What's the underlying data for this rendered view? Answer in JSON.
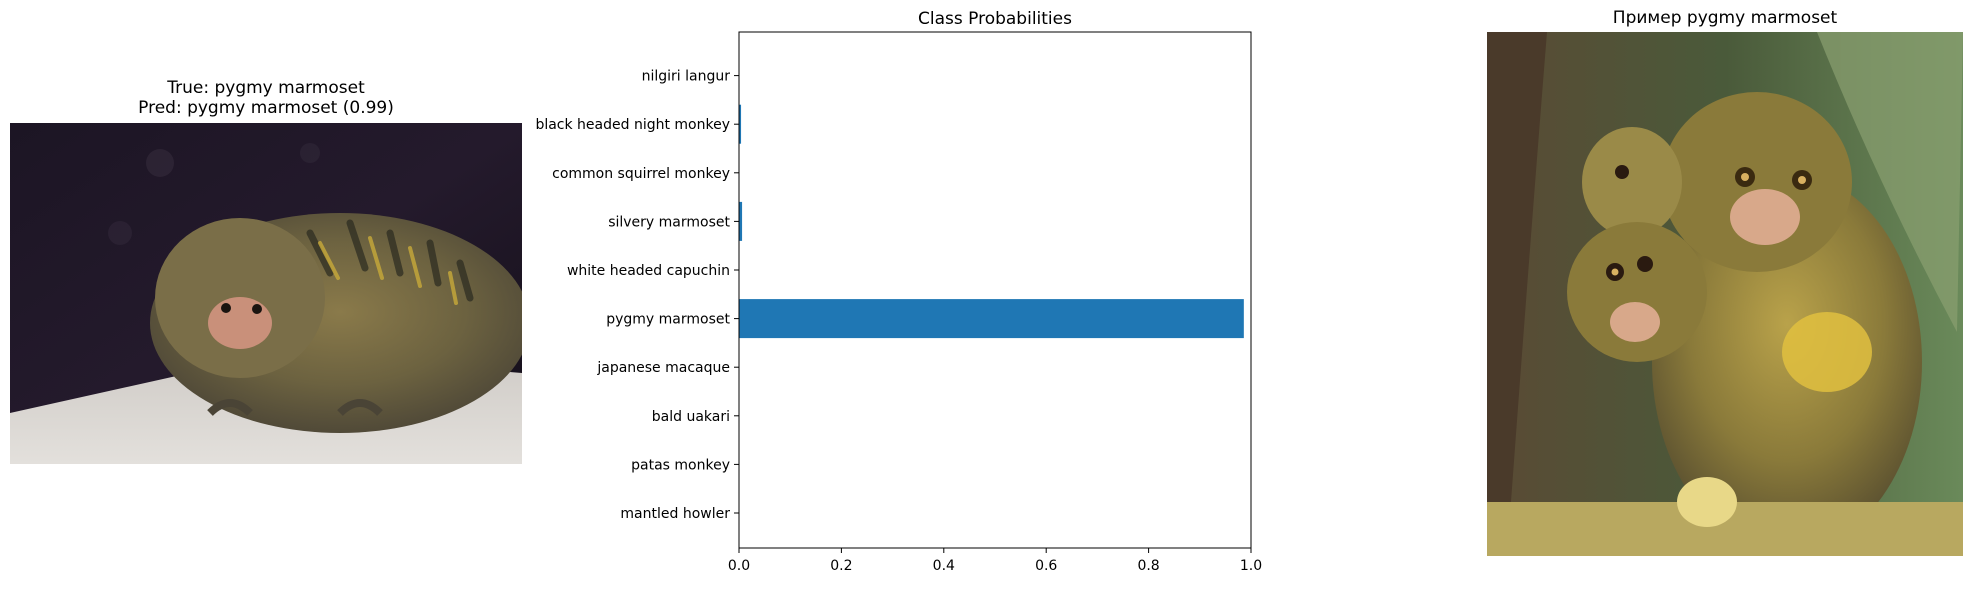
{
  "left_panel": {
    "title_line1": "True: pygmy marmoset",
    "title_line2": "Pred: pygmy marmoset (0.99)"
  },
  "right_panel": {
    "title": "Пример pygmy marmoset"
  },
  "chart_data": {
    "type": "bar",
    "orientation": "horizontal",
    "title": "Class Probabilities",
    "xlabel": "",
    "ylabel": "",
    "categories": [
      "mantled howler",
      "patas monkey",
      "bald uakari",
      "japanese macaque",
      "pygmy marmoset",
      "white headed capuchin",
      "silvery marmoset",
      "common squirrel monkey",
      "black headed night monkey",
      "nilgiri langur"
    ],
    "values": [
      0.0005,
      0.0004,
      0.0004,
      0.0005,
      0.986,
      0.0004,
      0.006,
      0.0004,
      0.004,
      0.0004
    ],
    "xlim": [
      0,
      1.0
    ],
    "xticks": [
      0.0,
      0.2,
      0.4,
      0.6,
      0.8,
      1.0
    ],
    "xtick_labels": [
      "0.0",
      "0.2",
      "0.4",
      "0.6",
      "0.8",
      "1.0"
    ],
    "bar_color": "#1f77b4",
    "grid": false
  }
}
